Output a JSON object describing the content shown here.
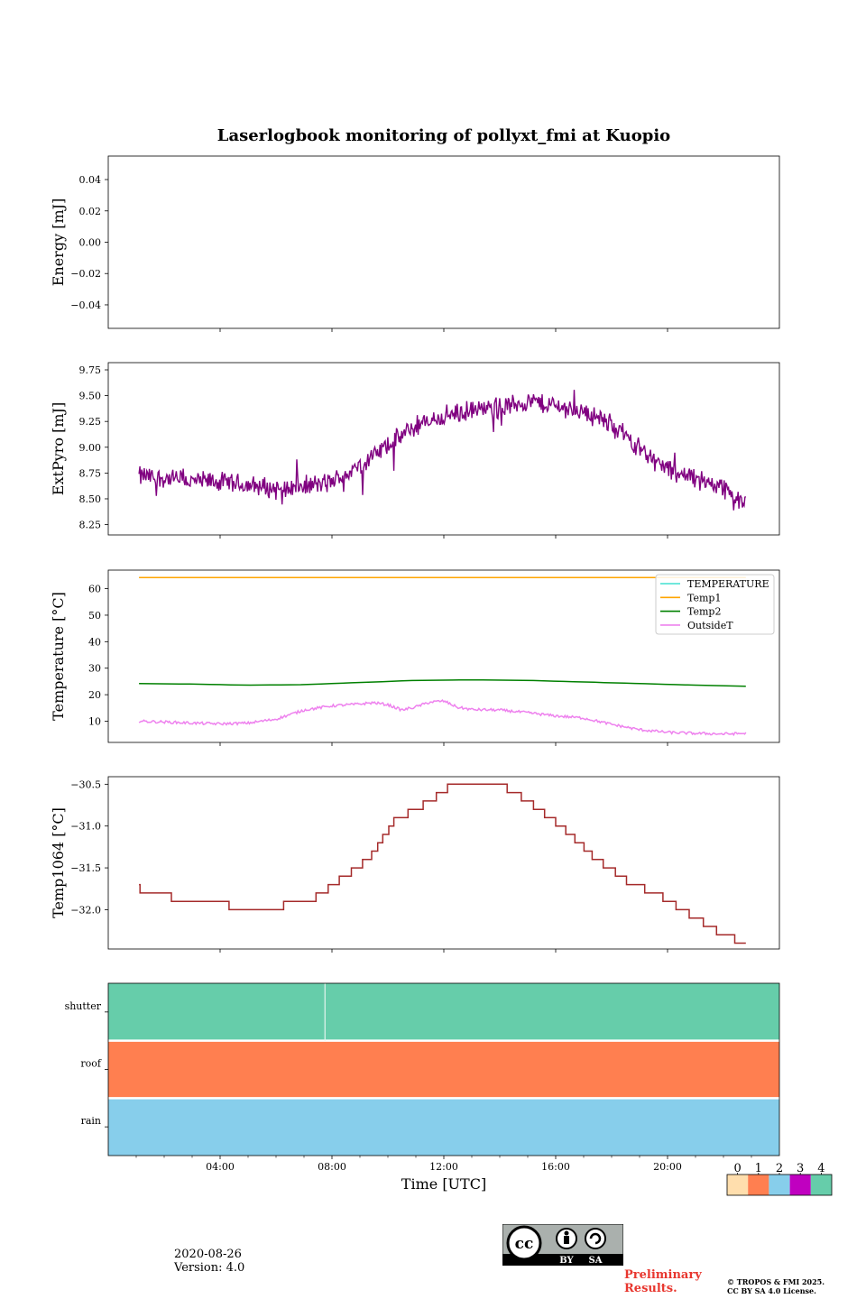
{
  "title": "Laserlogbook monitoring of pollyxt_fmi at Kuopio",
  "footer": {
    "date": "2020-08-26",
    "version": "Version: 4.0",
    "preliminary": "Preliminary Results.",
    "copyright_line1": "© TROPOS & FMI 2025.",
    "copyright_line2": "CC BY SA 4.0 License.",
    "license_labels": [
      "BY",
      "SA"
    ],
    "license_logo_text": "cc"
  },
  "colors": {
    "extpyro": "#800080",
    "TEMPERATURE": "#40e0d0",
    "Temp1": "#ffa500",
    "Temp2": "#008000",
    "OutsideT": "#ee82ee",
    "temp1064": "#a52a2a",
    "prelim": "#e8372f"
  },
  "chart_data": [
    {
      "type": "line",
      "name": "energy",
      "ylabel": "Energy [mJ]",
      "ylim": [
        -0.055,
        0.055
      ],
      "yticks": [
        -0.04,
        -0.02,
        0.0,
        0.02,
        0.04
      ],
      "ytick_labels": [
        "−0.04",
        "−0.02",
        "0.00",
        "0.02",
        "0.04"
      ],
      "series": []
    },
    {
      "type": "line",
      "name": "extpyro",
      "ylabel": "ExtPyro [mJ]",
      "xlim": [
        0,
        24
      ],
      "ylim": [
        8.15,
        9.82
      ],
      "yticks": [
        8.25,
        8.5,
        8.75,
        9.0,
        9.25,
        9.5,
        9.75
      ],
      "ytick_labels": [
        "8.25",
        "8.50",
        "8.75",
        "9.00",
        "9.25",
        "9.50",
        "9.75"
      ],
      "series": [
        {
          "name": "ExtPyro",
          "noise": 0.085,
          "x": [
            1.1,
            2,
            3,
            4,
            5,
            6,
            7,
            8,
            9,
            10,
            11,
            12,
            13,
            14,
            15,
            16,
            17,
            18,
            19,
            20,
            21,
            22,
            22.8
          ],
          "values": [
            8.72,
            8.7,
            8.67,
            8.66,
            8.63,
            8.6,
            8.62,
            8.66,
            8.82,
            9.02,
            9.2,
            9.3,
            9.35,
            9.38,
            9.45,
            9.4,
            9.35,
            9.22,
            9.0,
            8.78,
            8.7,
            8.62,
            8.42
          ]
        }
      ]
    },
    {
      "type": "line",
      "name": "temperature",
      "ylabel": "Temperature [°C]",
      "xlim": [
        0,
        24
      ],
      "ylim": [
        2,
        67
      ],
      "yticks": [
        10,
        20,
        30,
        40,
        50,
        60
      ],
      "ytick_labels": [
        "10",
        "20",
        "30",
        "40",
        "50",
        "60"
      ],
      "legend": [
        "TEMPERATURE",
        "Temp1",
        "Temp2",
        "OutsideT"
      ],
      "legend_position": "top-right",
      "series": [
        {
          "name": "TEMPERATURE",
          "x": [],
          "values": []
        },
        {
          "name": "Temp1",
          "x": [
            1.1,
            22.8
          ],
          "values": [
            64.2,
            64.2
          ]
        },
        {
          "name": "Temp2",
          "x": [
            1.1,
            3,
            5,
            7,
            9,
            11,
            13,
            15,
            17,
            19,
            21,
            22.8
          ],
          "values": [
            24.2,
            24,
            23.6,
            23.8,
            24.6,
            25.4,
            25.6,
            25.4,
            24.8,
            24.2,
            23.6,
            23.2
          ]
        },
        {
          "name": "OutsideT",
          "noise": 0.5,
          "x": [
            1.1,
            2,
            3,
            4,
            5,
            6,
            7,
            8,
            9,
            9.5,
            10,
            10.5,
            11,
            11.5,
            12,
            12.5,
            13,
            14,
            15,
            16,
            17,
            18,
            19,
            20,
            21,
            22,
            22.8
          ],
          "values": [
            10,
            9.7,
            9.3,
            9,
            9.3,
            10.8,
            14.2,
            15.8,
            16.5,
            17,
            16.2,
            14.2,
            15.4,
            17.2,
            17.6,
            15.2,
            14.4,
            14.2,
            13.2,
            12,
            11.2,
            8.8,
            6.8,
            5.8,
            5.4,
            5.2,
            5.4
          ]
        }
      ]
    },
    {
      "type": "line",
      "name": "temp1064",
      "ylabel": "Temp1064 [°C]",
      "xlim": [
        0,
        24
      ],
      "ylim": [
        -32.47,
        -30.41
      ],
      "yticks": [
        -32.0,
        -31.5,
        -31.0,
        -30.5
      ],
      "ytick_labels": [
        "−32.0",
        "−31.5",
        "−31.0",
        "−30.5"
      ],
      "series": [
        {
          "name": "Temp1064",
          "step": 0.1,
          "x": [
            1.1,
            1.15,
            3.3,
            5.3,
            7.2,
            9.3,
            10.2,
            11.5,
            12.3,
            14.0,
            15.0,
            16.2,
            17.3,
            18.5,
            19.8,
            21.0,
            22.0,
            22.8
          ],
          "values": [
            -31.7,
            -31.8,
            -31.9,
            -32.0,
            -31.9,
            -31.4,
            -30.95,
            -30.7,
            -30.5,
            -30.5,
            -30.7,
            -31.0,
            -31.35,
            -31.65,
            -31.85,
            -32.1,
            -32.3,
            -32.4
          ]
        }
      ]
    },
    {
      "type": "heatmap",
      "name": "status",
      "rows": [
        "shutter",
        "roof",
        "rain"
      ],
      "row_values": [
        4,
        1,
        2
      ],
      "xlim": [
        0,
        24
      ],
      "xticks": [
        4,
        8,
        12,
        16,
        20
      ],
      "xtick_labels": [
        "04:00",
        "08:00",
        "12:00",
        "16:00",
        "20:00"
      ],
      "xlabel": "Time [UTC]",
      "shutter_marker_x": 7.75,
      "colorbar": {
        "ticks": [
          "0",
          "1",
          "2",
          "3",
          "4"
        ],
        "colors": [
          "#ffdead",
          "#ff7f50",
          "#87ceeb",
          "#c000c0",
          "#66cdaa"
        ]
      }
    }
  ]
}
